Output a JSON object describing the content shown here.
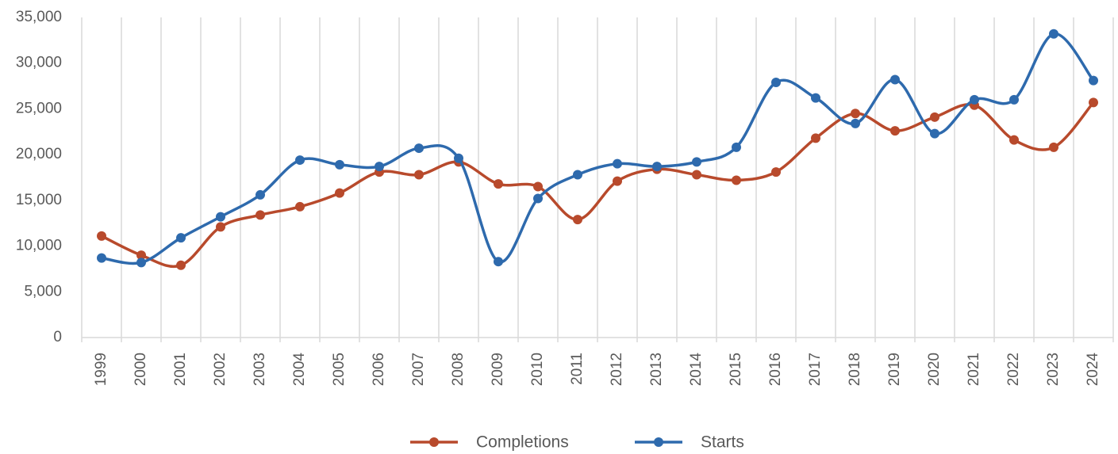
{
  "chart_data": {
    "type": "line",
    "categories": [
      "1999",
      "2000",
      "2001",
      "2002",
      "2003",
      "2004",
      "2005",
      "2006",
      "2007",
      "2008",
      "2009",
      "2010",
      "2011",
      "2012",
      "2013",
      "2014",
      "2015",
      "2016",
      "2017",
      "2018",
      "2019",
      "2020",
      "2021",
      "2022",
      "2023",
      "2024"
    ],
    "series": [
      {
        "name": "Completions",
        "color": "#b84a2c",
        "values": [
          11100,
          9000,
          7900,
          12100,
          13400,
          14300,
          15800,
          18100,
          17800,
          19200,
          16800,
          16500,
          12900,
          17100,
          18400,
          17800,
          17200,
          18100,
          21800,
          24500,
          22600,
          24100,
          25400,
          21600,
          20800,
          25700
        ]
      },
      {
        "name": "Starts",
        "color": "#2e6aad",
        "values": [
          8700,
          8200,
          10900,
          13200,
          15600,
          19400,
          18900,
          18700,
          20700,
          19600,
          8300,
          15200,
          17800,
          19000,
          18700,
          19200,
          20800,
          27900,
          26200,
          23400,
          28200,
          22300,
          26000,
          26000,
          33200,
          28100
        ]
      }
    ],
    "ylim": [
      0,
      35000
    ],
    "yticks": [
      0,
      {
        "value": 5000,
        "label": "5,000"
      },
      {
        "value": 10000,
        "label": "10,000"
      },
      {
        "value": 15000,
        "label": "15,000"
      },
      {
        "value": 20000,
        "label": "20,000"
      },
      {
        "value": 25000,
        "label": "25,000"
      },
      {
        "value": 30000,
        "label": "30,000"
      },
      {
        "value": 35000,
        "label": "35,000"
      }
    ],
    "grid": true,
    "smooth": true,
    "legend": "bottom"
  }
}
